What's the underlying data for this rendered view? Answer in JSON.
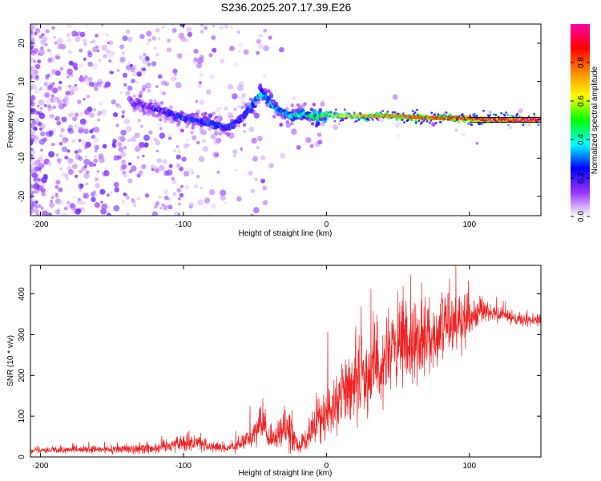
{
  "title": "S236.2025.207.17.39.E26",
  "chart_data": [
    {
      "type": "heatmap",
      "title": "S236.2025.207.17.39.E26",
      "xlabel": "Height of straight line (km)",
      "ylabel": "Frequency (Hz)",
      "xlim": [
        -207,
        150
      ],
      "ylim": [
        -25,
        25
      ],
      "xticks": [
        -200,
        -100,
        0,
        100
      ],
      "xtick_labels": [
        "-200",
        "-100",
        "0",
        "100"
      ],
      "yticks": [
        -20,
        -10,
        0,
        10,
        20
      ],
      "ytick_labels": [
        "-20",
        "-10",
        "0",
        "10",
        "20"
      ],
      "colorbar": {
        "label": "Normalized spectral amplitude",
        "range": [
          0,
          1
        ],
        "ticks": [
          0.0,
          0.2,
          0.4,
          0.6,
          0.8
        ],
        "tick_labels": [
          "0.0",
          "0.2",
          "0.4",
          "0.6",
          "0.8"
        ],
        "colormap": [
          "#ffffff",
          "#9933ff",
          "#0000ff",
          "#00ffff",
          "#00ff00",
          "#ffff00",
          "#ff8800",
          "#ff0000",
          "#ff00aa"
        ]
      },
      "ridge": {
        "x": [
          -130,
          -120,
          -100,
          -80,
          -70,
          -60,
          -45,
          -35,
          -25,
          -15,
          -5,
          0,
          10,
          30,
          50,
          70,
          90,
          110,
          130,
          150
        ],
        "y": [
          4,
          3,
          0.5,
          -1,
          -2,
          0,
          7,
          3,
          1,
          1.5,
          0.5,
          1.5,
          1,
          1,
          1,
          0.5,
          0.5,
          0.2,
          0,
          0
        ],
        "peak_amplitude": [
          0.15,
          0.2,
          0.25,
          0.25,
          0.25,
          0.25,
          0.35,
          0.35,
          0.4,
          0.45,
          0.5,
          0.55,
          0.6,
          0.7,
          0.75,
          0.8,
          0.85,
          0.9,
          0.95,
          1.0
        ]
      }
    },
    {
      "type": "line",
      "xlabel": "Height of straight line (km)",
      "ylabel": "SNR (10 * v/v)",
      "xlim": [
        -207,
        150
      ],
      "ylim": [
        0,
        470
      ],
      "xticks": [
        -200,
        -100,
        0,
        100
      ],
      "xtick_labels": [
        "-200",
        "-100",
        "0",
        "100"
      ],
      "yticks": [
        0,
        100,
        200,
        300,
        400
      ],
      "ytick_labels": [
        "0",
        "100",
        "200",
        "300",
        "400"
      ],
      "color": "#ee2222",
      "series": [
        {
          "x": [
            -207,
            -190,
            -170,
            -150,
            -130,
            -120,
            -110,
            -100,
            -90,
            -80,
            -70,
            -60,
            -50,
            -45,
            -40,
            -30,
            -25,
            -20,
            -15,
            -10,
            0,
            10,
            20,
            30,
            40,
            50,
            60,
            70,
            80,
            90,
            100,
            110,
            120,
            130,
            140,
            150
          ],
          "values": [
            18,
            17,
            17,
            18,
            20,
            22,
            30,
            35,
            35,
            25,
            20,
            30,
            60,
            80,
            40,
            60,
            75,
            25,
            40,
            70,
            105,
            150,
            185,
            215,
            240,
            260,
            280,
            300,
            310,
            330,
            345,
            360,
            350,
            340,
            335,
            335
          ],
          "noise": [
            10,
            10,
            10,
            12,
            14,
            15,
            20,
            25,
            25,
            15,
            12,
            20,
            40,
            55,
            30,
            45,
            55,
            15,
            30,
            50,
            70,
            90,
            100,
            110,
            115,
            120,
            110,
            100,
            90,
            80,
            60,
            30,
            20,
            15,
            15,
            15
          ]
        }
      ]
    }
  ]
}
